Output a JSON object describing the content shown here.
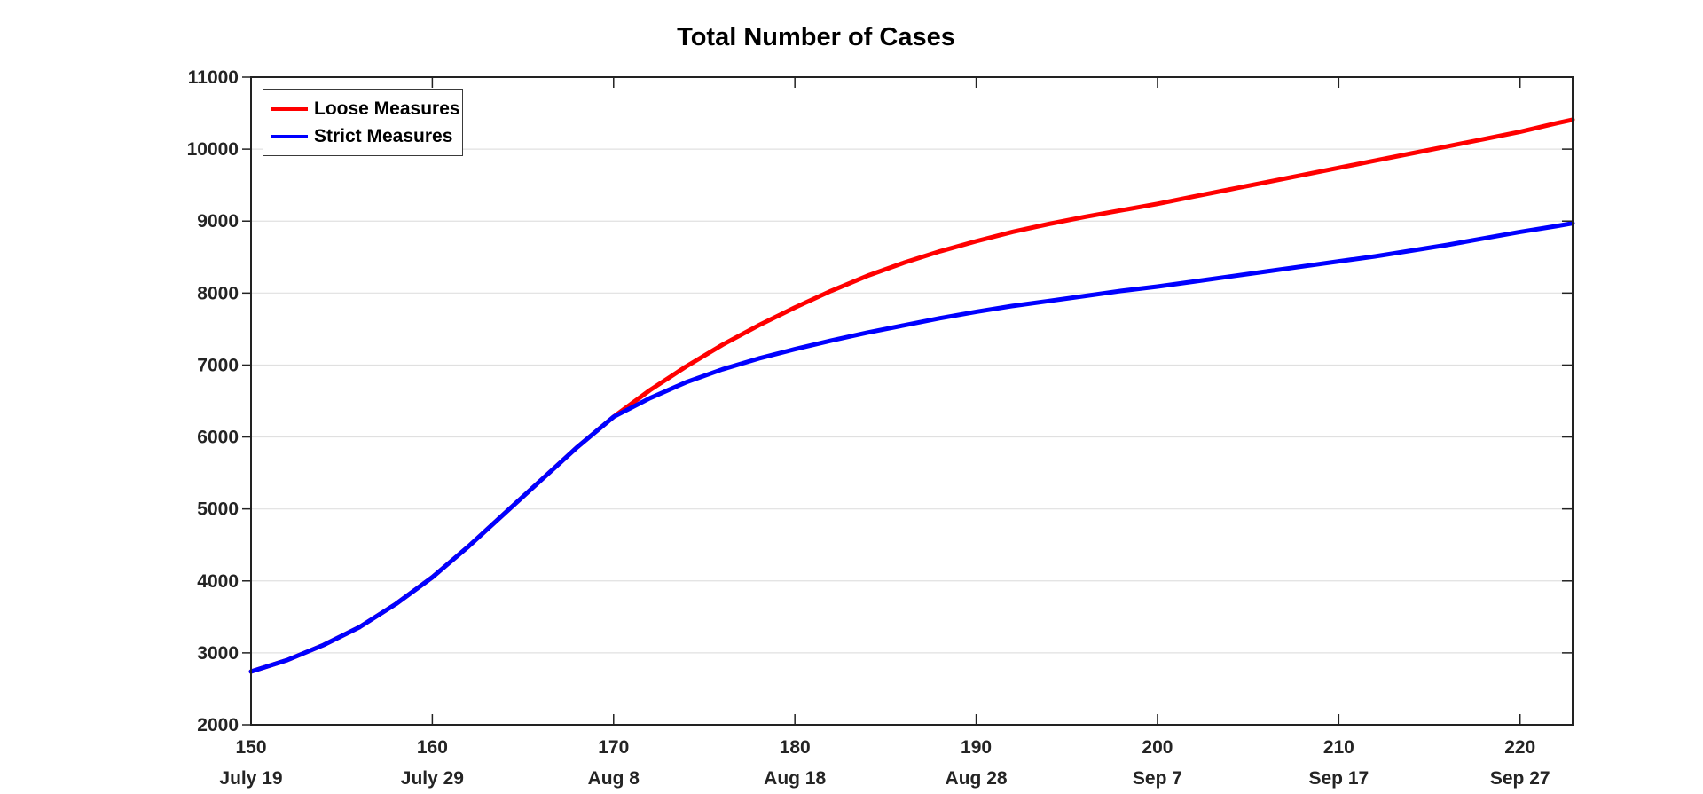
{
  "chart_data": {
    "type": "line",
    "title": "Total Number of Cases",
    "grid": "horizontal",
    "background": "#ffffff",
    "axis_color": "#222222",
    "grid_color": "#e0e0e0",
    "label_color": "#242424",
    "x_axis": {
      "range": [
        150,
        222.9
      ],
      "ticks": [
        150,
        160,
        170,
        180,
        190,
        200,
        210,
        220
      ],
      "tick_labels": [
        "150",
        "160",
        "170",
        "180",
        "190",
        "200",
        "210",
        "220"
      ],
      "date_labels": [
        "July 19",
        "July 29",
        "Aug 8",
        "Aug 18",
        "Aug 28",
        "Sep 7",
        "Sep 17",
        "Sep 27"
      ]
    },
    "y_axis": {
      "range": [
        2000,
        11000
      ],
      "ticks": [
        2000,
        3000,
        4000,
        5000,
        6000,
        7000,
        8000,
        9000,
        10000,
        11000
      ],
      "tick_labels": [
        "2000",
        "3000",
        "4000",
        "5000",
        "6000",
        "7000",
        "8000",
        "9000",
        "10000",
        "11000"
      ]
    },
    "legend": {
      "position": "top-left"
    },
    "series": [
      {
        "name": "Loose Measures",
        "color": "#ff0000",
        "x": [
          150,
          152,
          154,
          156,
          158,
          160,
          162,
          164,
          166,
          168,
          170,
          172,
          174,
          176,
          178,
          180,
          182,
          184,
          186,
          188,
          190,
          192,
          194,
          196,
          198,
          200,
          202,
          204,
          206,
          208,
          210,
          212,
          214,
          216,
          218,
          220,
          222,
          222.9
        ],
        "y": [
          2740,
          2900,
          3110,
          3360,
          3680,
          4050,
          4480,
          4940,
          5400,
          5860,
          6280,
          6650,
          6980,
          7280,
          7550,
          7800,
          8030,
          8240,
          8420,
          8580,
          8720,
          8850,
          8960,
          9060,
          9150,
          9240,
          9340,
          9440,
          9540,
          9640,
          9740,
          9840,
          9940,
          10040,
          10140,
          10240,
          10360,
          10410
        ]
      },
      {
        "name": "Strict Measures",
        "color": "#0000ff",
        "x": [
          150,
          152,
          154,
          156,
          158,
          160,
          162,
          164,
          166,
          168,
          170,
          172,
          174,
          176,
          178,
          180,
          182,
          184,
          186,
          188,
          190,
          192,
          194,
          196,
          198,
          200,
          202,
          204,
          206,
          208,
          210,
          212,
          214,
          216,
          218,
          220,
          222,
          222.9
        ],
        "y": [
          2740,
          2900,
          3110,
          3360,
          3680,
          4050,
          4480,
          4940,
          5400,
          5860,
          6280,
          6540,
          6760,
          6940,
          7090,
          7220,
          7340,
          7450,
          7550,
          7650,
          7740,
          7820,
          7890,
          7960,
          8030,
          8090,
          8160,
          8230,
          8300,
          8370,
          8440,
          8510,
          8590,
          8670,
          8760,
          8850,
          8930,
          8970
        ]
      }
    ]
  }
}
